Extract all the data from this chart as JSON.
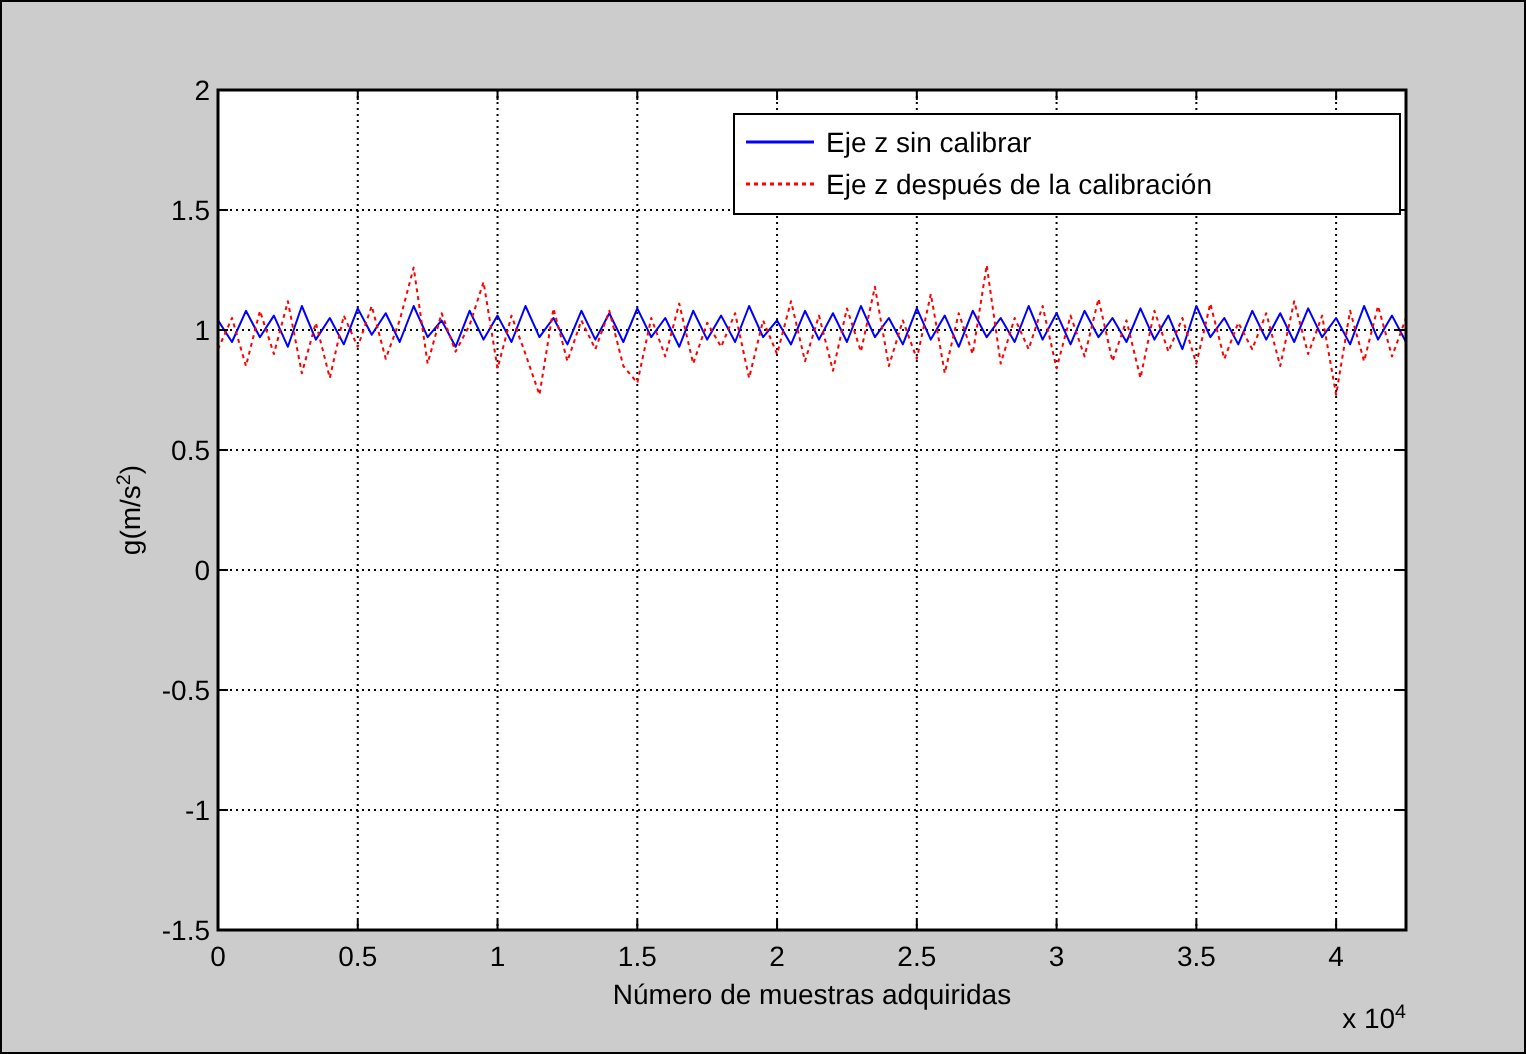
{
  "chart_data": {
    "type": "line",
    "xlabel": "Número de muestras adquiridas",
    "ylabel": "g(m/s$^{2}$)",
    "annotations": [
      "x 10$^{4}$"
    ],
    "xlim": [
      0,
      4.25
    ],
    "xticks": [
      0,
      0.5,
      1,
      1.5,
      2,
      2.5,
      3,
      3.5,
      4
    ],
    "ylim": [
      -1.5,
      2
    ],
    "yticks": [
      -1.5,
      -1,
      -0.5,
      0,
      0.5,
      1,
      1.5,
      2
    ],
    "grid": true,
    "legend": "top right",
    "x": [
      0,
      0.05,
      0.1,
      0.15,
      0.2,
      0.25,
      0.3,
      0.35,
      0.4,
      0.45,
      0.5,
      0.55,
      0.6,
      0.65,
      0.7,
      0.75,
      0.8,
      0.85,
      0.9,
      0.95,
      1,
      1.05,
      1.1,
      1.15,
      1.2,
      1.25,
      1.3,
      1.35,
      1.4,
      1.45,
      1.5,
      1.55,
      1.6,
      1.65,
      1.7,
      1.75,
      1.8,
      1.85,
      1.9,
      1.95,
      2,
      2.05,
      2.1,
      2.15,
      2.2,
      2.25,
      2.3,
      2.35,
      2.4,
      2.45,
      2.5,
      2.55,
      2.6,
      2.65,
      2.7,
      2.75,
      2.8,
      2.85,
      2.9,
      2.95,
      3,
      3.05,
      3.1,
      3.15,
      3.2,
      3.25,
      3.3,
      3.35,
      3.4,
      3.45,
      3.5,
      3.55,
      3.6,
      3.65,
      3.7,
      3.75,
      3.8,
      3.85,
      3.9,
      3.95,
      4,
      4.05,
      4.1,
      4.15,
      4.2,
      4.25
    ],
    "series": [
      {
        "name": "Eje z sin calibrar",
        "color": "#0000ff",
        "line_style": "solid",
        "values": [
          1.04,
          0.95,
          1.08,
          0.97,
          1.06,
          0.93,
          1.1,
          0.96,
          1.05,
          0.94,
          1.09,
          0.98,
          1.07,
          0.95,
          1.1,
          0.97,
          1.04,
          0.93,
          1.08,
          0.96,
          1.06,
          0.95,
          1.1,
          0.97,
          1.05,
          0.94,
          1.08,
          0.96,
          1.07,
          0.95,
          1.09,
          0.97,
          1.05,
          0.93,
          1.08,
          0.96,
          1.06,
          0.95,
          1.1,
          0.97,
          1.04,
          0.94,
          1.08,
          0.96,
          1.07,
          0.95,
          1.1,
          0.97,
          1.05,
          0.94,
          1.09,
          0.96,
          1.06,
          0.93,
          1.08,
          0.97,
          1.05,
          0.95,
          1.1,
          0.96,
          1.07,
          0.94,
          1.08,
          0.97,
          1.05,
          0.95,
          1.09,
          0.96,
          1.06,
          0.92,
          1.1,
          0.97,
          1.05,
          0.94,
          1.08,
          0.96,
          1.07,
          0.95,
          1.09,
          0.97,
          1.05,
          0.94,
          1.1,
          0.96,
          1.06,
          0.95
        ]
      },
      {
        "name": "Eje z después de la calibración",
        "color": "#ff0000",
        "line_style": "dotted",
        "values": [
          0.92,
          1.05,
          0.85,
          1.08,
          0.9,
          1.12,
          0.82,
          1.03,
          0.8,
          1.06,
          0.93,
          1.1,
          0.88,
          1.04,
          1.26,
          0.86,
          1.07,
          0.91,
          1.02,
          1.2,
          0.84,
          1.06,
          0.9,
          0.73,
          1.09,
          0.87,
          1.04,
          0.92,
          1.08,
          0.85,
          0.78,
          1.05,
          0.89,
          1.11,
          0.86,
          1.03,
          0.93,
          1.07,
          0.8,
          1.04,
          0.9,
          1.12,
          0.87,
          1.06,
          0.83,
          1.09,
          0.91,
          1.18,
          0.85,
          1.04,
          0.88,
          1.15,
          0.82,
          1.07,
          0.9,
          1.27,
          0.86,
          1.05,
          0.92,
          1.1,
          0.84,
          1.06,
          0.89,
          1.13,
          0.87,
          1.04,
          0.8,
          1.08,
          0.91,
          1.05,
          0.86,
          1.11,
          0.88,
          1.03,
          0.92,
          1.07,
          0.85,
          1.12,
          0.9,
          1.06,
          0.73,
          1.08,
          0.87,
          1.1,
          0.89,
          1.05
        ]
      }
    ]
  }
}
